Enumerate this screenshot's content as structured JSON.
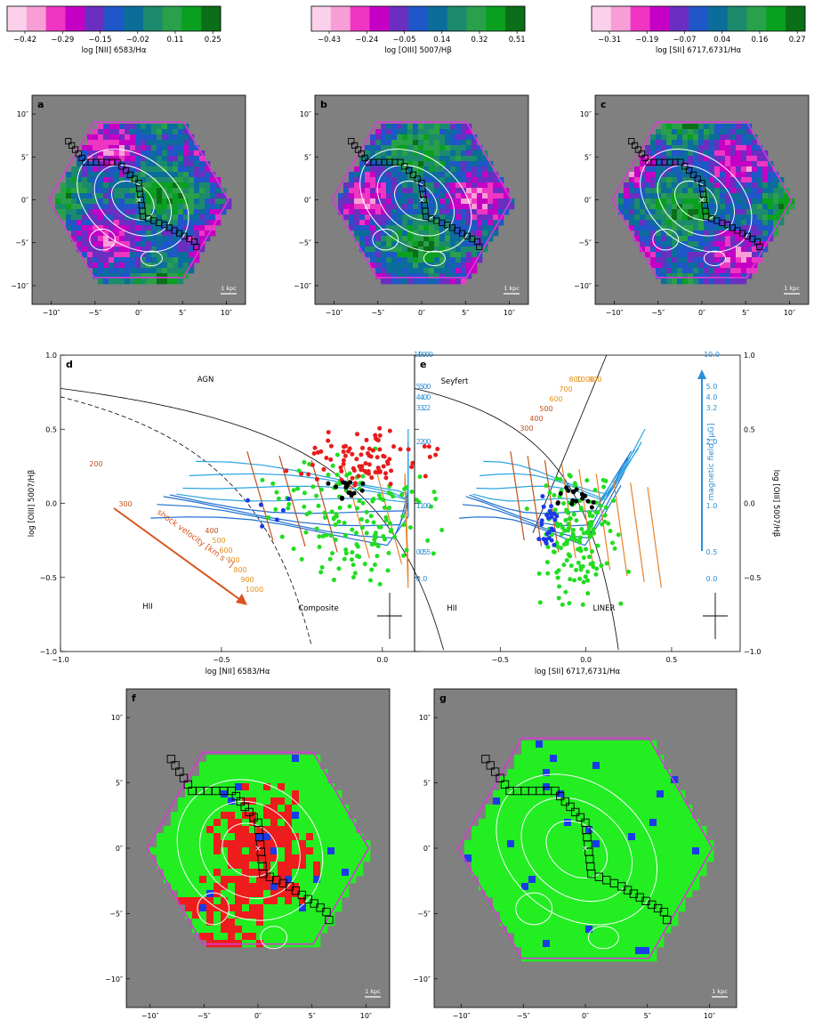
{
  "colorbars": [
    {
      "ticks": [
        "−0.42",
        "−0.29",
        "−0.15",
        "−0.02",
        "0.11",
        "0.25"
      ],
      "label": "log [NII] 6583/Hα"
    },
    {
      "ticks": [
        "−0.43",
        "−0.24",
        "−0.05",
        "0.14",
        "0.32",
        "0.51"
      ],
      "label": "log [OIII] 5007/Hβ"
    },
    {
      "ticks": [
        "−0.31",
        "−0.19",
        "−0.07",
        "0.04",
        "0.16",
        "0.27"
      ],
      "label": "log [SII] 6717,6731/Hα"
    }
  ],
  "palette": [
    "#fbd0ea",
    "#f79ed7",
    "#ef36c3",
    "#c500c4",
    "#6a2fc0",
    "#1f56c8",
    "#0b6d9a",
    "#1c8a6c",
    "#29a04a",
    "#09a020",
    "#0b6e18"
  ],
  "map_axis": {
    "y_ticks": [
      "10″",
      "5″",
      "0″",
      "−5″",
      "−10″"
    ],
    "x_ticks": [
      "−10″",
      "−5″",
      "0″",
      "5″",
      "10″"
    ],
    "scalebar": "1 kpc"
  },
  "maps_top": [
    {
      "label": "a"
    },
    {
      "label": "b"
    },
    {
      "label": "c"
    }
  ],
  "maps_bottom": [
    {
      "label": "f"
    },
    {
      "label": "g"
    }
  ],
  "diagram_d": {
    "label": "d",
    "region_labels": [
      "AGN",
      "HII",
      "Composite"
    ],
    "xlabel": "log [NII] 6583/Hα",
    "ylabel": "log [OIII] 5007/Hβ",
    "x_ticks": [
      "−1.0",
      "−0.5",
      "0.0"
    ],
    "y_ticks": [
      "1.0",
      "0.5",
      "0.0",
      "−0.5",
      "−1.0"
    ],
    "velocity_labels": [
      "200",
      "300",
      "400",
      "500",
      "600",
      "700",
      "800",
      "900",
      "1000"
    ],
    "arrow_label": "shock velocity [km s⁻¹]",
    "field_labels": [
      "10.0",
      "5.0",
      "4.0",
      "3.2",
      "2.0",
      "1.0",
      "0.5"
    ]
  },
  "diagram_e": {
    "label": "e",
    "region_labels": [
      "Seyfert",
      "HII",
      "LINER"
    ],
    "xlabel": "log [SII] 6717,6731/Hα",
    "ylabel": "log [OIII] 5007/Hβ",
    "x_ticks": [
      "−0.5",
      "0.0",
      "0.5"
    ],
    "y_ticks": [
      "1.0",
      "0.5",
      "0.0",
      "−0.5",
      "−1.0"
    ],
    "velocity_labels": [
      "300",
      "400",
      "500",
      "600",
      "700",
      "800",
      "1000",
      "900"
    ],
    "field_labels_left": [
      "10.0",
      "5.0",
      "4.0",
      "3.2",
      "2.0",
      "1.0",
      "0.5",
      "0.0"
    ],
    "field_labels_right": [
      "10.0",
      "5.0",
      "4.0",
      "3.2",
      "2.0",
      "1.0",
      "0.5",
      "0.0"
    ],
    "arrow_label": "magnetic field [μG]"
  }
}
